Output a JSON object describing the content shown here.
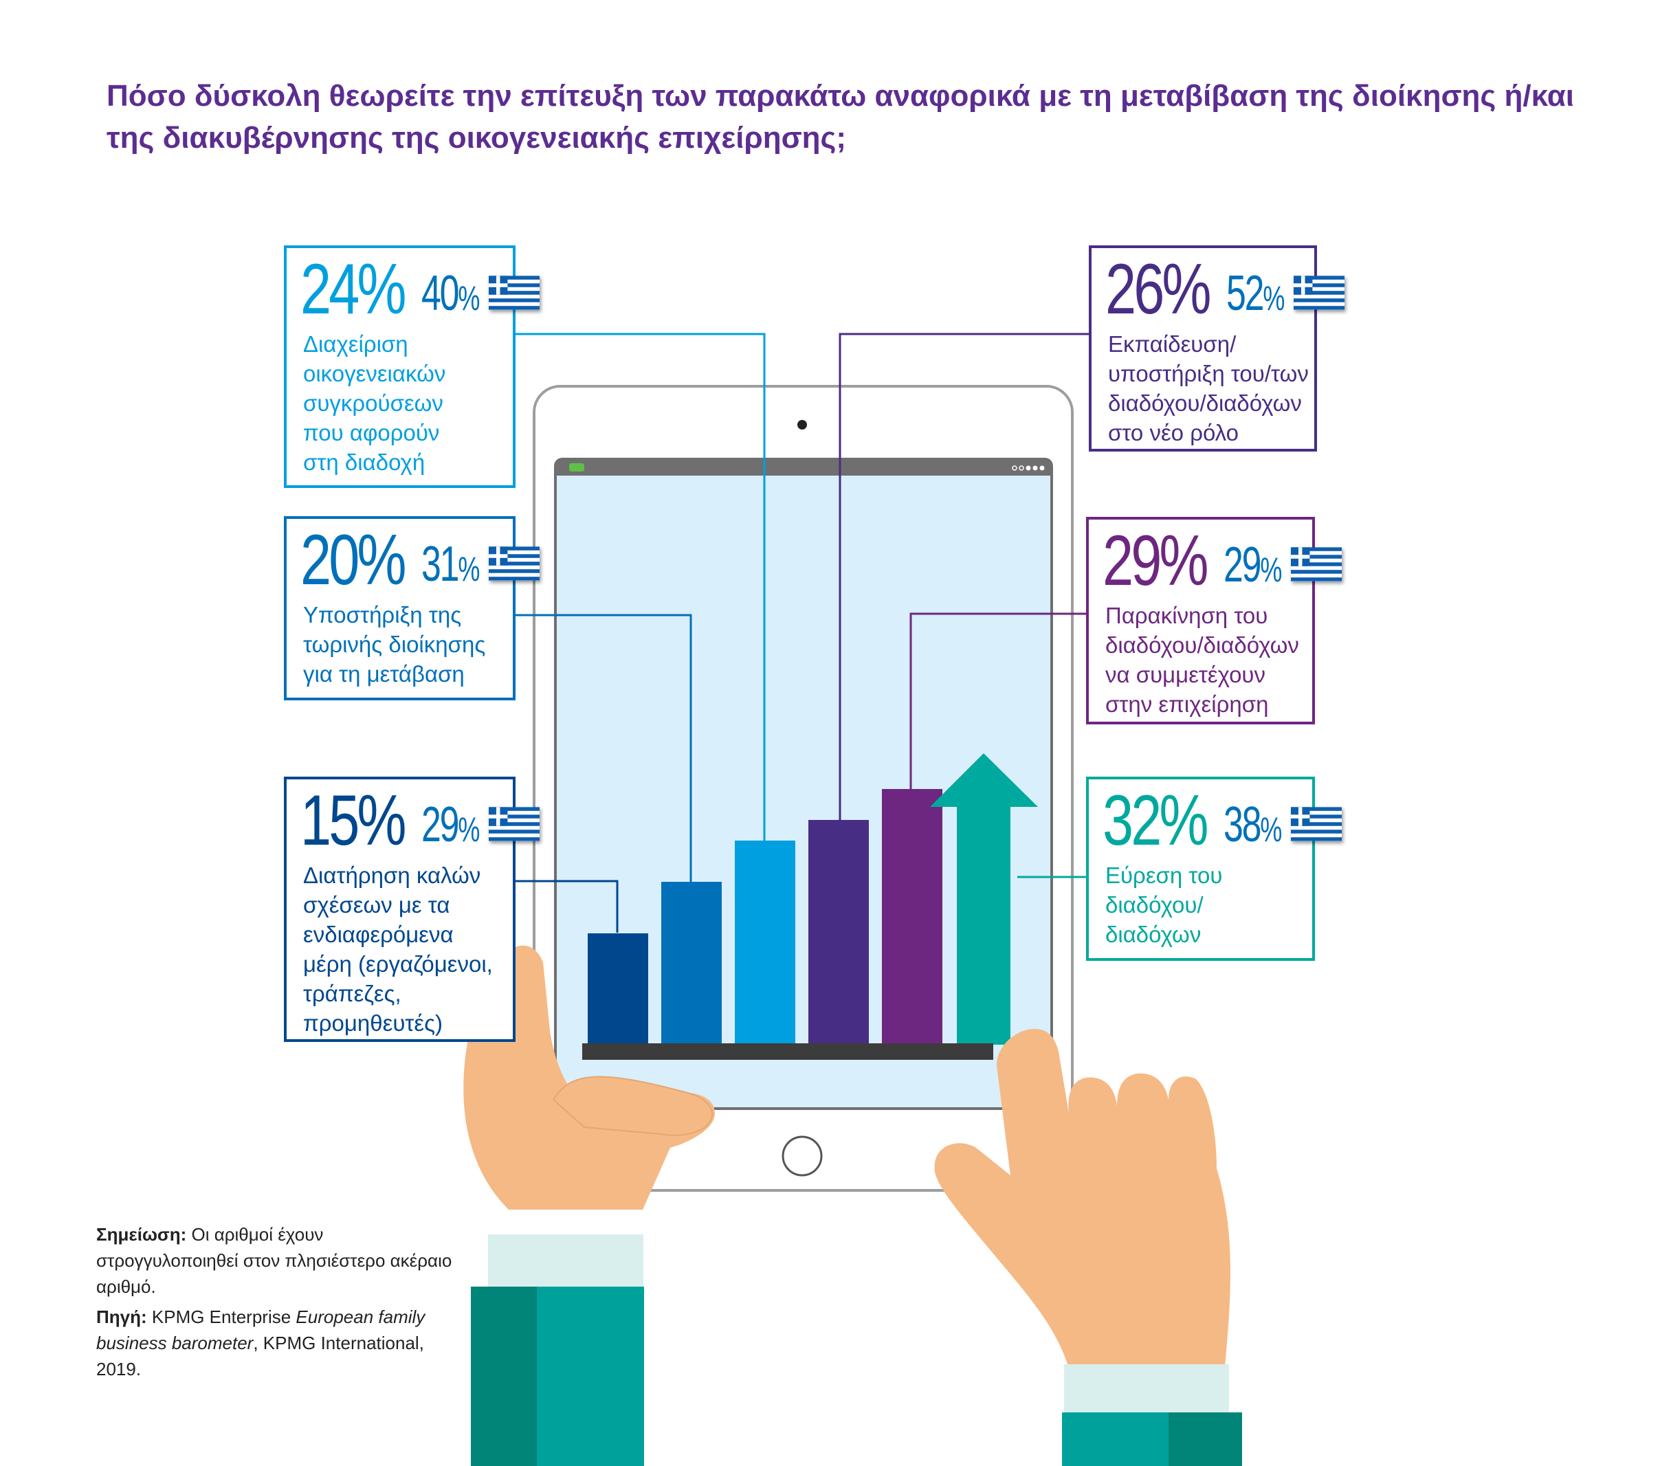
{
  "title": "Πόσο δύσκολη θεωρείτε την επίτευξη των παρακάτω αναφορικά με τη μεταβίβαση της διοίκησης ή/και της διακυβέρνησης της οικογενειακής επιχείρησης;",
  "chart_data": {
    "type": "bar",
    "title": "Πόσο δύσκολη θεωρείτε την επίτευξη των παρακάτω αναφορικά με τη μεταβίβαση της διοίκησης ή/και της διακυβέρνησης της οικογενειακής επιχείρησης;",
    "unit": "%",
    "categories": [
      "Διαχείριση οικογενειακών συγκρούσεων που αφορούν στη διαδοχή",
      "Υποστήριξη της τωρινής διοίκησης για τη μετάβαση",
      "Διατήρηση καλών σχέσεων με τα ενδιαφερόμενα μέρη (εργαζόμενοι, τράπεζες, προμηθευτές)",
      "Εκπαίδευση/υποστήριξη του/των διαδόχου/διαδόχων στο νέο ρόλο",
      "Παρακίνηση του διαδόχου/διαδόχων να συμμετέχουν στην επιχείρηση",
      "Εύρεση του διαδόχου/διαδόχων"
    ],
    "series": [
      {
        "values": [
          24,
          20,
          15,
          26,
          29,
          32
        ]
      },
      {
        "values": [
          40,
          31,
          29,
          52,
          29,
          38
        ]
      }
    ],
    "items": [
      {
        "big": "24%",
        "small": "40",
        "pct": "%",
        "lines": [
          "Διαχείριση",
          "οικογενειακών",
          "συγκρούσεων",
          "που αφορούν",
          "στη διαδοχή"
        ],
        "color": "#009fdf"
      },
      {
        "big": "20%",
        "small": "31",
        "pct": "%",
        "lines": [
          "Υποστήριξη της",
          "τωρινής διοίκησης",
          "για τη μετάβαση"
        ],
        "color": "#0070b9"
      },
      {
        "big": "15%",
        "small": "29",
        "pct": "%",
        "lines": [
          "Διατήρηση καλών",
          "σχέσεων με τα",
          "ενδιαφερόμενα",
          "μέρη  (εργαζόμενοι,",
          "τράπεζες,",
          "προμηθευτές)"
        ],
        "color": "#00478e"
      },
      {
        "big": "26%",
        "small": "52",
        "pct": "%",
        "lines": [
          "Εκπαίδευση/",
          "υποστήριξη του/των",
          "διαδόχου/διαδόχων",
          "στο νέο ρόλο"
        ],
        "color": "#482d85"
      },
      {
        "big": "29%",
        "small": "29",
        "pct": "%",
        "lines": [
          "Παρακίνηση του",
          "διαδόχου/διαδόχων",
          "να συμμετέχουν",
          "στην επιχείρηση"
        ],
        "color": "#6d2780"
      },
      {
        "big": "32%",
        "small": "38",
        "pct": "%",
        "lines": [
          "Εύρεση του",
          "διαδόχου/",
          "διαδόχων"
        ],
        "color": "#00a99d"
      }
    ]
  },
  "notes": {
    "note_label": "Σημείωση:",
    "note_text": " Οι αριθμοί έχουν στρογγυλοποιηθεί στον πλησιέστερο ακέραιο αριθμό.",
    "source_label": "Πηγή:",
    "source_text_1": " KPMG Enterprise ",
    "source_italic": "European family business barometer",
    "source_text_2": ", KPMG International, 2019."
  },
  "colors": {
    "title": "#5c2d91",
    "skin": "#f5b985",
    "sleeve": "#00a19a",
    "screen": "#d9effb",
    "tablet_frame": "#ffffff"
  }
}
